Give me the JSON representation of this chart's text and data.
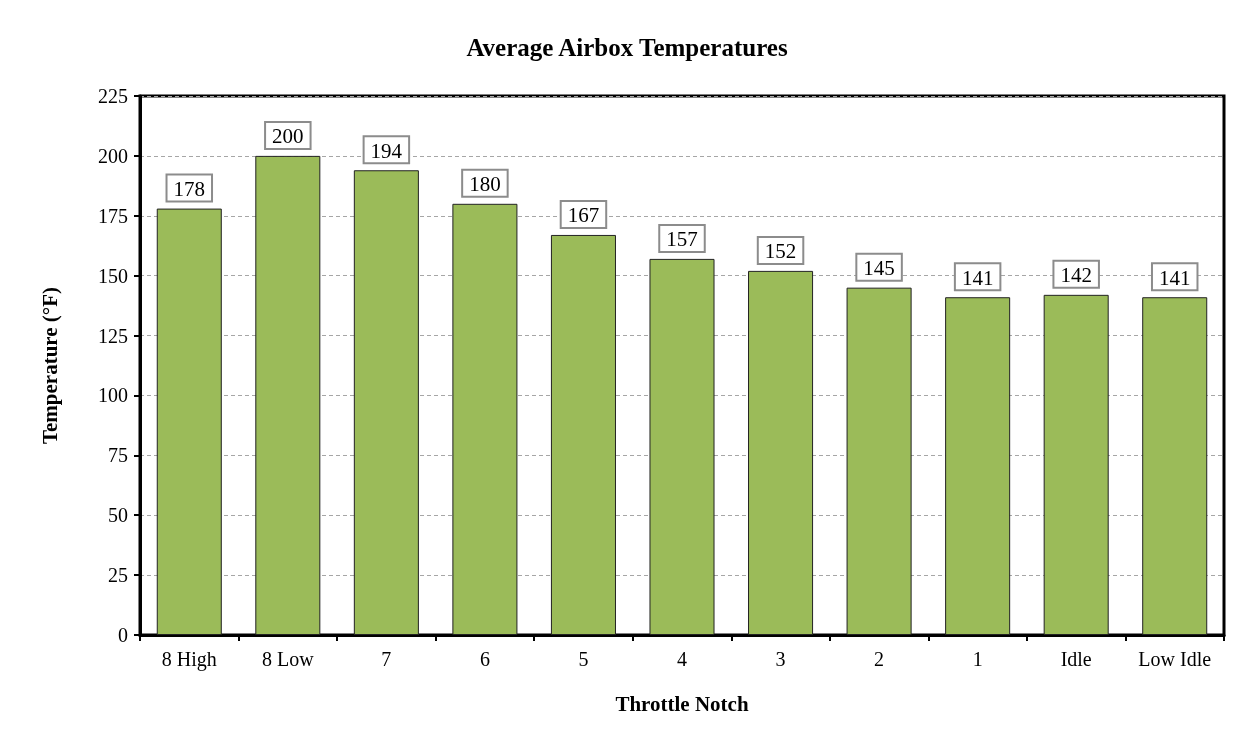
{
  "chart_data": {
    "type": "bar",
    "title": "Average Airbox Temperatures",
    "xlabel": "Throttle Notch",
    "ylabel": "Temperature (°F)",
    "categories": [
      "8 High",
      "8 Low",
      "7",
      "6",
      "5",
      "4",
      "3",
      "2",
      "1",
      "Idle",
      "Low Idle"
    ],
    "values": [
      178,
      200,
      194,
      180,
      167,
      157,
      152,
      145,
      141,
      142,
      141
    ],
    "color": "#9bbb59",
    "ylim": [
      0,
      225
    ],
    "yticks": [
      0,
      25,
      50,
      75,
      100,
      125,
      150,
      175,
      200,
      225
    ],
    "grid": "y",
    "data_labels": true
  }
}
